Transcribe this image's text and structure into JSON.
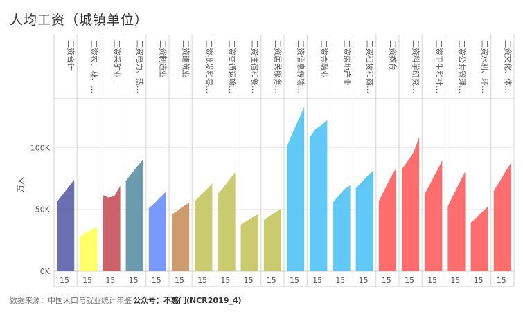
{
  "title": "人均工资（城镇单位）",
  "footer": {
    "source": "数据来源：中国人口与就业统计年鉴",
    "account": "公众号：不惑门(NCR2019_4)"
  },
  "chart_data": {
    "type": "area",
    "ylabel": "万人",
    "ylim": [
      0,
      140000
    ],
    "yticks": [
      0,
      50000,
      100000
    ],
    "ytick_labels": [
      "0K",
      "50K",
      "100K"
    ],
    "x_tick_label": "15",
    "grid": true,
    "panels": [
      {
        "name": "工资合计",
        "color": "#5b5ea6",
        "values": [
          56000,
          62000,
          68000,
          74000
        ]
      },
      {
        "name": "工资农、林、…",
        "color": "#ffff55",
        "values": [
          28000,
          31000,
          33500,
          36000
        ]
      },
      {
        "name": "工资采矿业",
        "color": "#c94f5a",
        "values": [
          61500,
          59500,
          61000,
          69000
        ]
      },
      {
        "name": "工资电力、热…",
        "color": "#5c8fa6",
        "values": [
          73000,
          79000,
          85000,
          90500
        ]
      },
      {
        "name": "工资制造业",
        "color": "#6b8eff",
        "values": [
          51000,
          55000,
          60000,
          64500
        ]
      },
      {
        "name": "工资建筑业",
        "color": "#c9905e",
        "values": [
          46000,
          49000,
          52500,
          55500
        ]
      },
      {
        "name": "工资批发和零…",
        "color": "#c4c45e",
        "values": [
          56500,
          61500,
          66000,
          71000
        ]
      },
      {
        "name": "工资交通运输…",
        "color": "#c4c45e",
        "values": [
          62500,
          68000,
          74000,
          80000
        ]
      },
      {
        "name": "工资住宿和餐…",
        "color": "#c4c45e",
        "values": [
          37500,
          40500,
          43500,
          46000
        ]
      },
      {
        "name": "工资居民服务…",
        "color": "#c4c45e",
        "values": [
          41500,
          44500,
          47500,
          50500
        ]
      },
      {
        "name": "工资信息传输…",
        "color": "#4fc3f7",
        "values": [
          100500,
          112000,
          122500,
          133000
        ]
      },
      {
        "name": "工资金融业",
        "color": "#4fc3f7",
        "values": [
          108500,
          115000,
          118000,
          122500
        ]
      },
      {
        "name": "工资房地产业",
        "color": "#4fc3f7",
        "values": [
          55500,
          61000,
          66500,
          69500
        ]
      },
      {
        "name": "工资租赁和商…",
        "color": "#4fc3f7",
        "values": [
          67000,
          72000,
          77000,
          81500
        ]
      },
      {
        "name": "工资教育",
        "color": "#ff5e5e",
        "values": [
          56500,
          66000,
          75500,
          83500
        ]
      },
      {
        "name": "工资科学研究…",
        "color": "#ff5e5e",
        "values": [
          82500,
          89000,
          96000,
          108500
        ]
      },
      {
        "name": "工资卫生和社…",
        "color": "#ff5e5e",
        "values": [
          62500,
          71500,
          80500,
          89500
        ]
      },
      {
        "name": "工资公共管理…",
        "color": "#ff5e5e",
        "values": [
          52500,
          62000,
          71500,
          80500
        ]
      },
      {
        "name": "工资水利、环…",
        "color": "#ff5e5e",
        "values": [
          39000,
          43500,
          48000,
          52500
        ]
      },
      {
        "name": "工资文化、体…",
        "color": "#ff5e5e",
        "values": [
          65000,
          72500,
          80500,
          88000
        ]
      }
    ]
  }
}
